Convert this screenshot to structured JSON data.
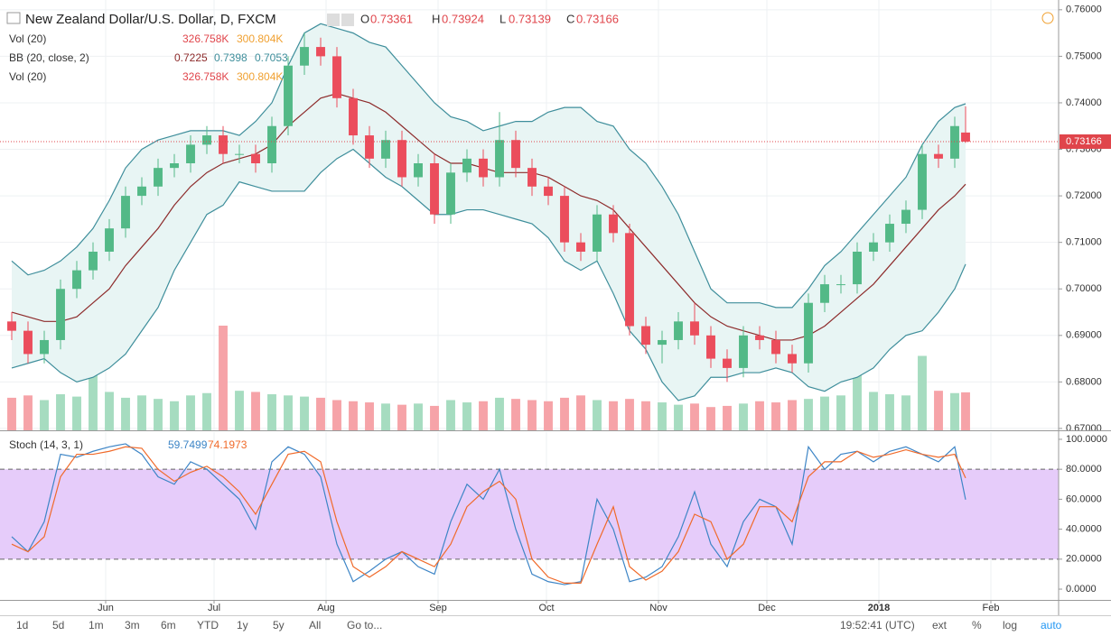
{
  "chart_data": {
    "type": "candlestick",
    "title": "New Zealand Dollar/U.S. Dollar, D, FXCM",
    "ohlc_letters": [
      "O",
      "H",
      "L",
      "C"
    ],
    "x": [
      2,
      6.5,
      11,
      15.5,
      20,
      24.5,
      29,
      33.5,
      38,
      42.5,
      47,
      51.5,
      56,
      60.5,
      65,
      69.5,
      74,
      78.5,
      83,
      87.5,
      92,
      96.5,
      101,
      105.5,
      110,
      114.5,
      119,
      123.5,
      128,
      132.5,
      137,
      141.5,
      146,
      150.5,
      155,
      159.5,
      164,
      168.5,
      173,
      177.5,
      182,
      186.5,
      191,
      195.5,
      200,
      204.5,
      209,
      213.5,
      218,
      222.5,
      227,
      231.5,
      236,
      240.5,
      245,
      249.5,
      254,
      258.5,
      263,
      266
    ],
    "open": [
      0.693,
      0.691,
      0.686,
      0.689,
      0.7,
      0.704,
      0.708,
      0.713,
      0.72,
      0.722,
      0.726,
      0.727,
      0.731,
      0.733,
      0.729,
      0.729,
      0.727,
      0.735,
      0.748,
      0.752,
      0.75,
      0.741,
      0.733,
      0.728,
      0.732,
      0.724,
      0.727,
      0.716,
      0.725,
      0.728,
      0.724,
      0.732,
      0.726,
      0.722,
      0.72,
      0.71,
      0.708,
      0.716,
      0.712,
      0.692,
      0.688,
      0.689,
      0.693,
      0.69,
      0.685,
      0.683,
      0.69,
      0.689,
      0.686,
      0.684,
      0.697,
      0.701,
      0.701,
      0.708,
      0.71,
      0.714,
      0.717,
      0.729,
      0.728,
      0.73361
    ],
    "high": [
      0.695,
      0.693,
      0.691,
      0.702,
      0.706,
      0.71,
      0.715,
      0.722,
      0.724,
      0.728,
      0.729,
      0.733,
      0.735,
      0.735,
      0.731,
      0.731,
      0.737,
      0.75,
      0.755,
      0.754,
      0.752,
      0.743,
      0.735,
      0.734,
      0.734,
      0.729,
      0.729,
      0.727,
      0.73,
      0.73,
      0.738,
      0.734,
      0.728,
      0.724,
      0.722,
      0.712,
      0.718,
      0.718,
      0.714,
      0.694,
      0.691,
      0.695,
      0.697,
      0.692,
      0.687,
      0.692,
      0.692,
      0.691,
      0.688,
      0.699,
      0.703,
      0.703,
      0.71,
      0.712,
      0.716,
      0.719,
      0.731,
      0.731,
      0.737,
      0.73924
    ],
    "low": [
      0.689,
      0.684,
      0.684,
      0.687,
      0.698,
      0.702,
      0.706,
      0.711,
      0.718,
      0.72,
      0.724,
      0.725,
      0.729,
      0.727,
      0.727,
      0.725,
      0.725,
      0.733,
      0.746,
      0.748,
      0.739,
      0.731,
      0.726,
      0.726,
      0.722,
      0.722,
      0.714,
      0.714,
      0.723,
      0.722,
      0.722,
      0.724,
      0.72,
      0.718,
      0.708,
      0.706,
      0.706,
      0.71,
      0.69,
      0.686,
      0.684,
      0.687,
      0.688,
      0.683,
      0.68,
      0.681,
      0.687,
      0.684,
      0.682,
      0.682,
      0.695,
      0.699,
      0.699,
      0.706,
      0.708,
      0.712,
      0.715,
      0.726,
      0.726,
      0.73139
    ],
    "close": [
      0.691,
      0.686,
      0.689,
      0.7,
      0.704,
      0.708,
      0.713,
      0.72,
      0.722,
      0.726,
      0.727,
      0.731,
      0.733,
      0.729,
      0.729,
      0.727,
      0.735,
      0.748,
      0.752,
      0.75,
      0.741,
      0.733,
      0.728,
      0.732,
      0.724,
      0.727,
      0.716,
      0.725,
      0.728,
      0.724,
      0.732,
      0.726,
      0.722,
      0.72,
      0.71,
      0.708,
      0.716,
      0.712,
      0.692,
      0.688,
      0.689,
      0.693,
      0.69,
      0.685,
      0.683,
      0.69,
      0.689,
      0.686,
      0.684,
      0.697,
      0.701,
      0.701,
      0.708,
      0.71,
      0.714,
      0.717,
      0.729,
      0.728,
      0.735,
      0.73166
    ],
    "up_color": "#53b987",
    "down_color": "#eb4d5c",
    "volume": [
      280,
      300,
      260,
      310,
      290,
      640,
      330,
      280,
      300,
      270,
      250,
      300,
      320,
      900,
      340,
      330,
      310,
      300,
      290,
      280,
      260,
      250,
      240,
      230,
      220,
      230,
      210,
      260,
      240,
      250,
      280,
      270,
      260,
      250,
      280,
      300,
      260,
      250,
      270,
      250,
      240,
      220,
      230,
      200,
      210,
      230,
      250,
      240,
      260,
      270,
      290,
      300,
      590,
      330,
      310,
      300,
      640,
      340,
      320,
      326.758
    ],
    "volume_colors": {
      "up": "#a6dcc0",
      "down": "#f6a3a8"
    },
    "volume_ylim": [
      0,
      3700
    ],
    "volume_legend": {
      "name": "Vol (20)",
      "value_label": "326.758K",
      "ma": 300.804,
      "ma_label": "300.804K"
    },
    "bollinger": {
      "name": "BB (20, close, 2)",
      "color": "#3e8e9b",
      "middle_color": "#8d2b2b",
      "fill": "#e8f5f4",
      "upper": [
        0.706,
        0.703,
        0.704,
        0.706,
        0.709,
        0.713,
        0.719,
        0.726,
        0.73,
        0.732,
        0.733,
        0.734,
        0.734,
        0.734,
        0.733,
        0.736,
        0.74,
        0.748,
        0.755,
        0.757,
        0.756,
        0.755,
        0.753,
        0.752,
        0.748,
        0.744,
        0.74,
        0.737,
        0.736,
        0.734,
        0.735,
        0.736,
        0.736,
        0.738,
        0.739,
        0.739,
        0.736,
        0.735,
        0.73,
        0.727,
        0.722,
        0.716,
        0.708,
        0.7,
        0.697,
        0.697,
        0.697,
        0.696,
        0.696,
        0.7,
        0.705,
        0.708,
        0.712,
        0.716,
        0.72,
        0.724,
        0.731,
        0.736,
        0.739,
        0.7398
      ],
      "middle": [
        0.695,
        0.694,
        0.693,
        0.693,
        0.694,
        0.697,
        0.7,
        0.705,
        0.709,
        0.713,
        0.718,
        0.722,
        0.725,
        0.727,
        0.728,
        0.729,
        0.731,
        0.735,
        0.738,
        0.741,
        0.742,
        0.741,
        0.74,
        0.738,
        0.735,
        0.732,
        0.729,
        0.727,
        0.727,
        0.726,
        0.725,
        0.725,
        0.725,
        0.724,
        0.722,
        0.72,
        0.719,
        0.717,
        0.713,
        0.709,
        0.705,
        0.701,
        0.697,
        0.694,
        0.692,
        0.691,
        0.69,
        0.689,
        0.689,
        0.69,
        0.692,
        0.695,
        0.698,
        0.701,
        0.705,
        0.709,
        0.713,
        0.717,
        0.72,
        0.7225
      ],
      "lower": [
        0.683,
        0.684,
        0.685,
        0.682,
        0.68,
        0.681,
        0.683,
        0.686,
        0.691,
        0.696,
        0.704,
        0.71,
        0.716,
        0.718,
        0.723,
        0.722,
        0.721,
        0.721,
        0.721,
        0.725,
        0.728,
        0.73,
        0.727,
        0.724,
        0.722,
        0.719,
        0.716,
        0.716,
        0.717,
        0.717,
        0.716,
        0.715,
        0.714,
        0.711,
        0.706,
        0.704,
        0.706,
        0.699,
        0.691,
        0.687,
        0.68,
        0.676,
        0.677,
        0.681,
        0.681,
        0.682,
        0.682,
        0.683,
        0.682,
        0.679,
        0.678,
        0.68,
        0.681,
        0.683,
        0.687,
        0.69,
        0.691,
        0.695,
        0.7,
        0.7053
      ]
    },
    "xlim": [
      -1.25,
      291.75
    ],
    "ylim": [
      0.6696,
      0.7621
    ],
    "yticks": [
      {
        "value": 0.67,
        "label": "0.67000"
      },
      {
        "value": 0.68,
        "label": "0.68000"
      },
      {
        "value": 0.69,
        "label": "0.69000"
      },
      {
        "value": 0.7,
        "label": "0.70000"
      },
      {
        "value": 0.71,
        "label": "0.71000"
      },
      {
        "value": 0.72,
        "label": "0.72000"
      },
      {
        "value": 0.73,
        "label": "0.73000"
      },
      {
        "value": 0.74,
        "label": "0.74000"
      },
      {
        "value": 0.75,
        "label": "0.75000"
      },
      {
        "value": 0.76,
        "label": "0.76000"
      }
    ],
    "last_price_color": "#e0454b",
    "grid": true,
    "stochastic": {
      "type": "line",
      "name": "Stoch (14, 3, 1)",
      "band_color": "#e6ccfa",
      "bands": [
        20,
        80
      ],
      "series": [
        {
          "color": "#3d85c6",
          "values": [
            35,
            25,
            45,
            90,
            88,
            92,
            95,
            97,
            90,
            75,
            70,
            85,
            80,
            70,
            60,
            40,
            85,
            95,
            90,
            75,
            30,
            5,
            12,
            20,
            25,
            15,
            10,
            45,
            70,
            60,
            80,
            40,
            10,
            5,
            3,
            5,
            60,
            40,
            5,
            8,
            15,
            35,
            65,
            30,
            15,
            45,
            60,
            55,
            30,
            95,
            80,
            90,
            92,
            85,
            92,
            95,
            90,
            85,
            95,
            59.7499
          ]
        },
        {
          "color": "#f06a2a",
          "values": [
            30,
            25,
            35,
            75,
            90,
            90,
            92,
            95,
            94,
            80,
            72,
            78,
            82,
            75,
            65,
            50,
            70,
            90,
            92,
            85,
            45,
            15,
            8,
            15,
            25,
            20,
            15,
            30,
            55,
            65,
            72,
            60,
            20,
            8,
            4,
            4,
            30,
            55,
            15,
            6,
            12,
            25,
            50,
            45,
            20,
            30,
            55,
            55,
            45,
            75,
            85,
            85,
            92,
            88,
            90,
            93,
            90,
            88,
            90,
            74.1973
          ]
        }
      ],
      "ylim": [
        -7.2,
        104.8
      ],
      "yticks": [
        {
          "value": 0,
          "label": "0.0000"
        },
        {
          "value": 20,
          "label": "20.0000"
        },
        {
          "value": 40,
          "label": "40.0000"
        },
        {
          "value": 60,
          "label": "60.0000"
        },
        {
          "value": 80,
          "label": "80.0000"
        },
        {
          "value": 100,
          "label": "100.0000"
        }
      ]
    },
    "xticks": [
      {
        "value": 28,
        "label": "Jun"
      },
      {
        "value": 58,
        "label": "Jul"
      },
      {
        "value": 89,
        "label": "Aug"
      },
      {
        "value": 120,
        "label": "Sep"
      },
      {
        "value": 150,
        "label": "Oct"
      },
      {
        "value": 181,
        "label": "Nov"
      },
      {
        "value": 211,
        "label": "Dec"
      },
      {
        "value": 242,
        "label": "2018"
      },
      {
        "value": 273,
        "label": "Feb"
      }
    ]
  },
  "toolbar": {
    "ranges": [
      "1d",
      "5d",
      "1m",
      "3m",
      "6m",
      "YTD",
      "1y",
      "5y",
      "All"
    ],
    "goto": "Go to...",
    "time": "19:52:41 (UTC)",
    "options": [
      "ext",
      "%",
      "log",
      "auto"
    ]
  }
}
